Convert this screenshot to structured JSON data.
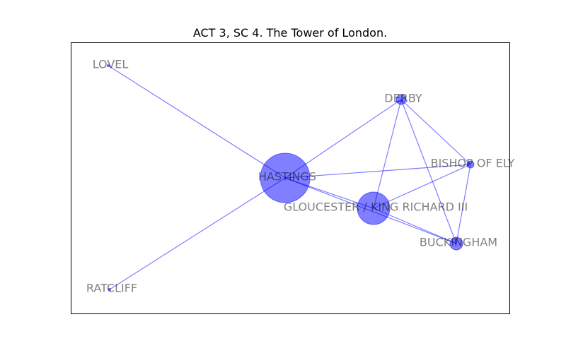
{
  "title": "ACT 3, SC 4. The Tower of London.",
  "colors": {
    "node": "#0000ff",
    "edge": "#0000ff",
    "label": "#000000",
    "frame": "#000000"
  },
  "nodes": [
    {
      "id": "hastings",
      "label": "HASTINGS"
    },
    {
      "id": "gloucester",
      "label": "GLOUCESTER / KING RICHARD III"
    },
    {
      "id": "derby",
      "label": "DERBY"
    },
    {
      "id": "bishop",
      "label": "BISHOP OF ELY"
    },
    {
      "id": "buckingham",
      "label": "BUCKINGHAM"
    },
    {
      "id": "lovel",
      "label": "LOVEL"
    },
    {
      "id": "ratcliff",
      "label": "RATCLIFF"
    }
  ],
  "edges": [
    [
      "hastings",
      "lovel"
    ],
    [
      "hastings",
      "ratcliff"
    ],
    [
      "hastings",
      "derby"
    ],
    [
      "hastings",
      "bishop"
    ],
    [
      "hastings",
      "gloucester"
    ],
    [
      "hastings",
      "buckingham"
    ],
    [
      "gloucester",
      "derby"
    ],
    [
      "gloucester",
      "bishop"
    ],
    [
      "gloucester",
      "buckingham"
    ],
    [
      "derby",
      "bishop"
    ],
    [
      "derby",
      "buckingham"
    ],
    [
      "bishop",
      "buckingham"
    ]
  ]
}
